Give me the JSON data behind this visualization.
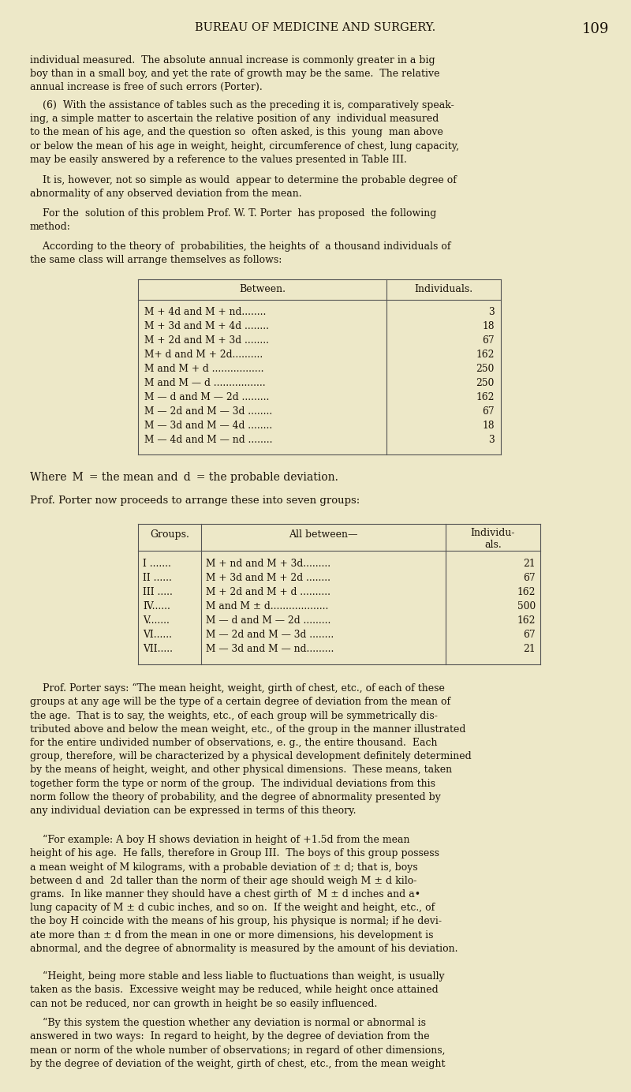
{
  "bg_color": "#ede8c8",
  "text_color": "#1a1208",
  "header_title": "BUREAU OF MEDICINE AND SURGERY.",
  "header_page": "109",
  "table1_rows": [
    [
      "M + 4d and M + nd........",
      "3"
    ],
    [
      "M + 3d and M + 4d ........",
      "18"
    ],
    [
      "M + 2d and M + 3d ........",
      "67"
    ],
    [
      "M+ d and M + 2d..........",
      "162"
    ],
    [
      "M and M + d .................",
      "250"
    ],
    [
      "M and M — d .................",
      "250"
    ],
    [
      "M — d and M — 2d .........",
      "162"
    ],
    [
      "M — 2d and M — 3d ........",
      "67"
    ],
    [
      "M — 3d and M — 4d ........",
      "18"
    ],
    [
      "M — 4d and M — nd ........",
      "3"
    ]
  ],
  "table2_rows": [
    [
      "I .......",
      "M + nd and M + 3d.........",
      "21"
    ],
    [
      "II ......",
      "M + 3d and M + 2d ........",
      "67"
    ],
    [
      "III .....",
      "M + 2d and M + d ..........",
      "162"
    ],
    [
      "IV......",
      "M and M ± d...................",
      "500"
    ],
    [
      "V.......",
      "M — d and M — 2d .........",
      "162"
    ],
    [
      "VI......",
      "M — 2d and M — 3d ........",
      "67"
    ],
    [
      "VII.....",
      "M — 3d and M — nd.........",
      "21"
    ]
  ]
}
